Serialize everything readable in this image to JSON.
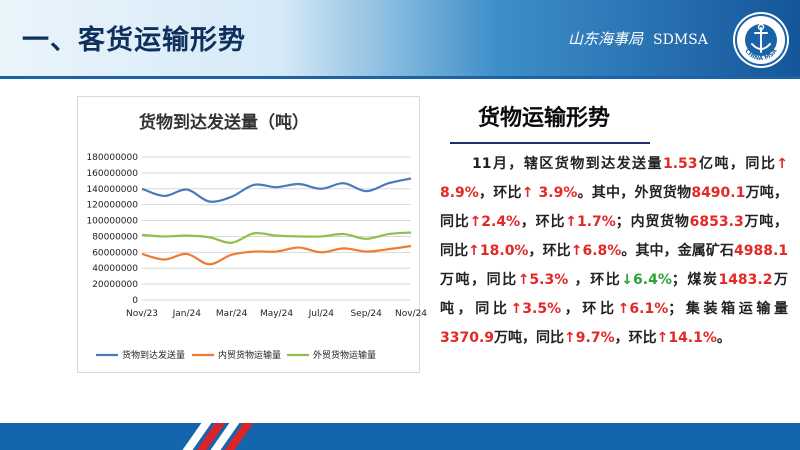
{
  "header": {
    "title": "一、客货运输形势",
    "brand_cn": "山东海事局",
    "brand_en": "SDMSA",
    "logo_text": "CHINA MSA"
  },
  "side": {
    "title": "货物运输形势",
    "paragraph": [
      {
        "t": "11月，辖区货物到达发送量"
      },
      {
        "t": "1.53",
        "c": "num"
      },
      {
        "t": "亿吨，同比"
      },
      {
        "t": "↑",
        "c": "up"
      },
      {
        "t": " 8.9%",
        "c": "num"
      },
      {
        "t": "，环比"
      },
      {
        "t": "↑",
        "c": "up"
      },
      {
        "t": " 3.9%",
        "c": "num"
      },
      {
        "t": "。其中，外贸货物"
      },
      {
        "t": "8490.1",
        "c": "num"
      },
      {
        "t": "万吨，同比"
      },
      {
        "t": "↑",
        "c": "up"
      },
      {
        "t": "2.4%",
        "c": "num"
      },
      {
        "t": "，环比"
      },
      {
        "t": "↑",
        "c": "up"
      },
      {
        "t": "1.7%",
        "c": "num"
      },
      {
        "t": "；内贸货物"
      },
      {
        "t": "6853.3",
        "c": "num"
      },
      {
        "t": "万吨，同比"
      },
      {
        "t": "↑",
        "c": "up"
      },
      {
        "t": "18.0%",
        "c": "num"
      },
      {
        "t": "，环比"
      },
      {
        "t": "↑",
        "c": "up"
      },
      {
        "t": "6.8%",
        "c": "num"
      },
      {
        "t": "。其中，金属矿石"
      },
      {
        "t": "4988.1",
        "c": "num"
      },
      {
        "t": "万吨，同比"
      },
      {
        "t": "↑",
        "c": "up"
      },
      {
        "t": "5.3%",
        "c": "num"
      },
      {
        "t": " ，环比"
      },
      {
        "t": "↓",
        "c": "down"
      },
      {
        "t": "6.4%",
        "c": "down"
      },
      {
        "t": "；煤炭"
      },
      {
        "t": "1483.2",
        "c": "num"
      },
      {
        "t": "万吨，同比"
      },
      {
        "t": "↑",
        "c": "up"
      },
      {
        "t": "3.5%",
        "c": "num"
      },
      {
        "t": "，环比"
      },
      {
        "t": "↑",
        "c": "up"
      },
      {
        "t": "6.1%",
        "c": "num"
      },
      {
        "t": "；集装箱运输量"
      },
      {
        "t": "3370.9",
        "c": "num"
      },
      {
        "t": "万吨，同比"
      },
      {
        "t": "↑",
        "c": "up"
      },
      {
        "t": "9.7%",
        "c": "num"
      },
      {
        "t": "，环比"
      },
      {
        "t": "↑",
        "c": "up"
      },
      {
        "t": "14.1%",
        "c": "num"
      },
      {
        "t": "。"
      }
    ]
  },
  "colors": {
    "accent_red": "#e32826",
    "accent_green": "#2da13a",
    "series_total": "#4a7ab8",
    "series_domestic": "#ed7d31",
    "series_foreign": "#8fbf4a"
  },
  "chart_data": {
    "type": "line",
    "title": "货物到达发送量（吨）",
    "xlabel": "",
    "ylabel": "",
    "ylim": [
      0,
      180000000
    ],
    "yticks": [
      0,
      20000000,
      40000000,
      60000000,
      80000000,
      100000000,
      120000000,
      140000000,
      160000000,
      180000000
    ],
    "categories": [
      "Nov/23",
      "Dec/23",
      "Jan/24",
      "Feb/24",
      "Mar/24",
      "Apr/24",
      "May/24",
      "Jun/24",
      "Jul/24",
      "Aug/24",
      "Sep/24",
      "Oct/24",
      "Nov/24"
    ],
    "x_tick_labels": [
      "Nov/23",
      "Jan/24",
      "Mar/24",
      "May/24",
      "Jul/24",
      "Sep/24",
      "Nov/24"
    ],
    "grid": true,
    "legend_position": "bottom",
    "series": [
      {
        "name": "货物到达发送量",
        "values": [
          140000000,
          131000000,
          139000000,
          124000000,
          130000000,
          145000000,
          142000000,
          146000000,
          140000000,
          147000000,
          137000000,
          147000000,
          153000000
        ]
      },
      {
        "name": "内贸货物运输量",
        "values": [
          58000000,
          51000000,
          58000000,
          45000000,
          57000000,
          61000000,
          61000000,
          66000000,
          60000000,
          65000000,
          61000000,
          64000000,
          68000000
        ]
      },
      {
        "name": "外贸货物运输量",
        "values": [
          82000000,
          80000000,
          81000000,
          79000000,
          72000000,
          84000000,
          81000000,
          80000000,
          80000000,
          83000000,
          77000000,
          83000000,
          85000000
        ]
      }
    ]
  }
}
